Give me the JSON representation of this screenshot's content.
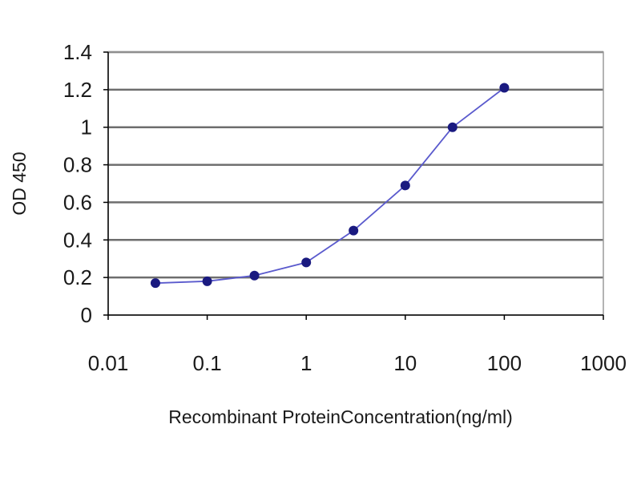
{
  "chart_data": {
    "type": "line",
    "title": "",
    "xlabel": "Recombinant ProteinConcentration(ng/ml)",
    "ylabel": "OD 450",
    "xscale": "log",
    "xlim": [
      0.01,
      1000
    ],
    "ylim": [
      0,
      1.4
    ],
    "x_ticks": [
      "0.01",
      "0.1",
      "1",
      "10",
      "100",
      "1000"
    ],
    "y_ticks": [
      "0",
      "0.2",
      "0.4",
      "0.6",
      "0.8",
      "1",
      "1.2",
      "1.4"
    ],
    "grid": "horizontal",
    "legend": "none",
    "series": [
      {
        "x": [
          0.03,
          0.1,
          0.3,
          1,
          3,
          10,
          30,
          100
        ],
        "y": [
          0.17,
          0.18,
          0.21,
          0.28,
          0.45,
          0.69,
          1.0,
          1.21
        ],
        "color": "#1a1a80"
      }
    ],
    "colors": {
      "plot_background": "#ffffff",
      "gridline": "#6e6e6e",
      "frame": "#9a9a9a",
      "line": "#5a5acd",
      "marker": "#1a1a80",
      "axis": "#000000"
    }
  }
}
